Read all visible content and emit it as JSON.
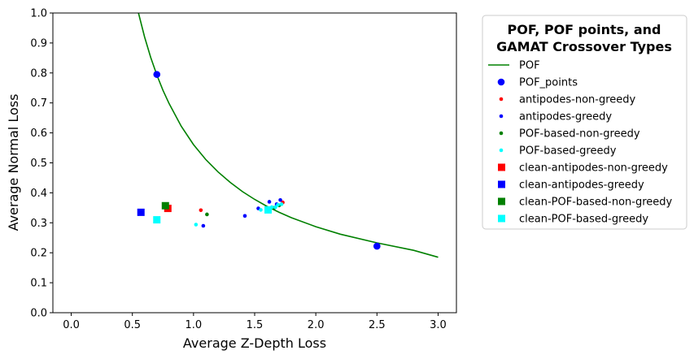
{
  "chart_data": {
    "type": "scatter",
    "xlabel": "Average Z-Depth Loss",
    "ylabel": "Average Normal Loss",
    "xlim": [
      -0.15,
      3.15
    ],
    "ylim": [
      0.0,
      1.0
    ],
    "xticks": [
      0.0,
      0.5,
      1.0,
      1.5,
      2.0,
      2.5,
      3.0
    ],
    "xtick_labels": [
      "0.0",
      "0.5",
      "1.0",
      "1.5",
      "2.0",
      "2.5",
      "3.0"
    ],
    "yticks": [
      0.0,
      0.1,
      0.2,
      0.3,
      0.4,
      0.5,
      0.6,
      0.7,
      0.8,
      0.9,
      1.0
    ],
    "ytick_labels": [
      "0.0",
      "0.1",
      "0.2",
      "0.3",
      "0.4",
      "0.5",
      "0.6",
      "0.7",
      "0.8",
      "0.9",
      "1.0"
    ],
    "grid": false,
    "legend": {
      "title_lines": [
        "POF, POF points, and",
        "GAMAT Crossover Types"
      ],
      "placement": "outside-right",
      "entries": [
        "POF",
        "POF_points",
        "antipodes-non-greedy",
        "antipodes-greedy",
        "POF-based-non-greedy",
        "POF-based-greedy",
        "clean-antipodes-non-greedy",
        "clean-antipodes-greedy",
        "clean-POF-based-non-greedy",
        "clean-POF-based-greedy"
      ]
    },
    "curve": {
      "name": "POF",
      "color": "#008000",
      "x": [
        0.55,
        0.6,
        0.65,
        0.7,
        0.75,
        0.8,
        0.9,
        1.0,
        1.1,
        1.2,
        1.3,
        1.4,
        1.5,
        1.6,
        1.7,
        1.8,
        2.0,
        2.2,
        2.5,
        2.8,
        3.0
      ],
      "y": [
        1.0,
        0.92,
        0.852,
        0.793,
        0.742,
        0.698,
        0.622,
        0.561,
        0.511,
        0.47,
        0.435,
        0.404,
        0.378,
        0.355,
        0.335,
        0.317,
        0.287,
        0.262,
        0.233,
        0.208,
        0.185
      ]
    },
    "series": [
      {
        "name": "POF_points",
        "marker": "circle-large",
        "color": "#0000ff",
        "points": [
          [
            0.7,
            0.795
          ],
          [
            2.5,
            0.222
          ]
        ]
      },
      {
        "name": "antipodes-non-greedy",
        "marker": "circle-small",
        "color": "#ff0000",
        "points": [
          [
            1.06,
            0.342
          ],
          [
            1.73,
            0.368
          ]
        ]
      },
      {
        "name": "antipodes-greedy",
        "marker": "circle-small",
        "color": "#0000ff",
        "points": [
          [
            1.08,
            0.29
          ],
          [
            1.42,
            0.323
          ],
          [
            1.53,
            0.348
          ],
          [
            1.62,
            0.37
          ],
          [
            1.68,
            0.362
          ],
          [
            1.71,
            0.376
          ]
        ]
      },
      {
        "name": "POF-based-non-greedy",
        "marker": "circle-small",
        "color": "#008000",
        "points": [
          [
            1.11,
            0.328
          ],
          [
            1.66,
            0.35
          ],
          [
            1.7,
            0.358
          ]
        ]
      },
      {
        "name": "POF-based-greedy",
        "marker": "circle-small",
        "color": "#00ffff",
        "points": [
          [
            1.02,
            0.294
          ],
          [
            1.55,
            0.343
          ],
          [
            1.6,
            0.345
          ],
          [
            1.64,
            0.352
          ],
          [
            1.67,
            0.352
          ],
          [
            1.69,
            0.36
          ],
          [
            1.72,
            0.362
          ]
        ]
      },
      {
        "name": "clean-antipodes-non-greedy",
        "marker": "square",
        "color": "#ff0000",
        "points": [
          [
            0.79,
            0.348
          ]
        ]
      },
      {
        "name": "clean-antipodes-greedy",
        "marker": "square",
        "color": "#0000ff",
        "points": [
          [
            0.57,
            0.335
          ]
        ]
      },
      {
        "name": "clean-POF-based-non-greedy",
        "marker": "square",
        "color": "#008000",
        "points": [
          [
            0.77,
            0.357
          ]
        ]
      },
      {
        "name": "clean-POF-based-greedy",
        "marker": "square",
        "color": "#00ffff",
        "points": [
          [
            0.7,
            0.31
          ],
          [
            1.61,
            0.343
          ]
        ]
      }
    ]
  }
}
